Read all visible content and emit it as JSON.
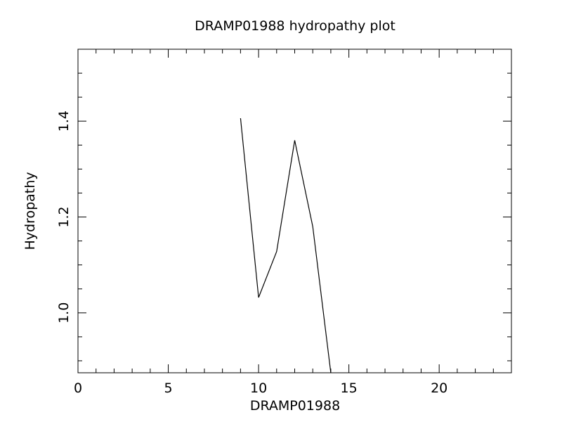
{
  "chart_data": {
    "type": "line",
    "title": "DRAMP01988 hydropathy plot",
    "xlabel": "DRAMP01988",
    "ylabel": "Hydropathy",
    "xlim": [
      0,
      24
    ],
    "ylim": [
      0.875,
      1.55
    ],
    "xticks": [
      0,
      5,
      10,
      15,
      20
    ],
    "xtick_labels": [
      "0",
      "5",
      "10",
      "15",
      "20"
    ],
    "yticks": [
      1.0,
      1.2,
      1.4
    ],
    "ytick_labels": [
      "1.0",
      "1.2",
      "1.4"
    ],
    "grid": false,
    "series": [
      {
        "x": [
          9,
          10,
          11,
          12,
          13,
          14
        ],
        "y": [
          1.406,
          1.032,
          1.128,
          1.36,
          1.18,
          0.875
        ]
      }
    ]
  }
}
